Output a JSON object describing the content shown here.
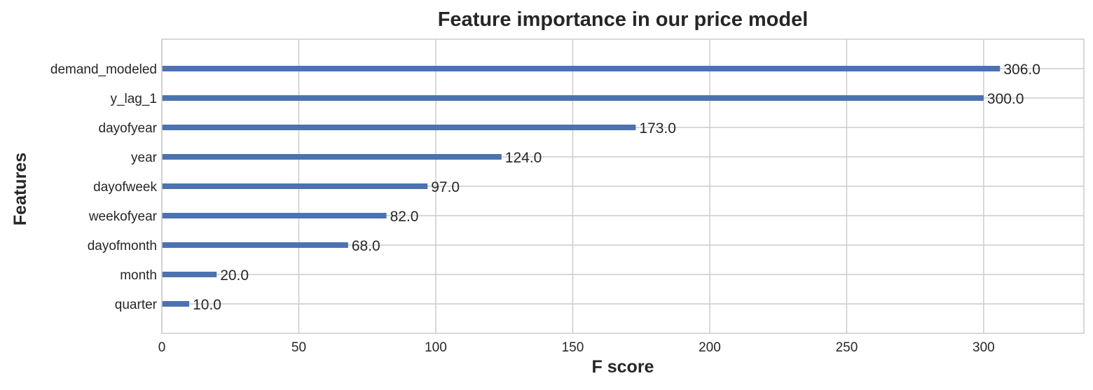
{
  "chart_data": {
    "type": "bar",
    "orientation": "horizontal",
    "title": "Feature importance in our price model",
    "xlabel": "F score",
    "ylabel": "Features",
    "categories": [
      "demand_modeled",
      "y_lag_1",
      "dayofyear",
      "year",
      "dayofweek",
      "weekofyear",
      "dayofmonth",
      "month",
      "quarter"
    ],
    "values": [
      306.0,
      300.0,
      173.0,
      124.0,
      97.0,
      82.0,
      68.0,
      20.0,
      10.0
    ],
    "value_labels": [
      "306.0",
      "300.0",
      "173.0",
      "124.0",
      "97.0",
      "82.0",
      "68.0",
      "20.0",
      "10.0"
    ],
    "xticks": [
      0,
      50,
      100,
      150,
      200,
      250,
      300
    ],
    "xlim": [
      0,
      336.6
    ],
    "grid": true,
    "bar_color": "#4c72b0",
    "grid_color": "#cccccc"
  }
}
